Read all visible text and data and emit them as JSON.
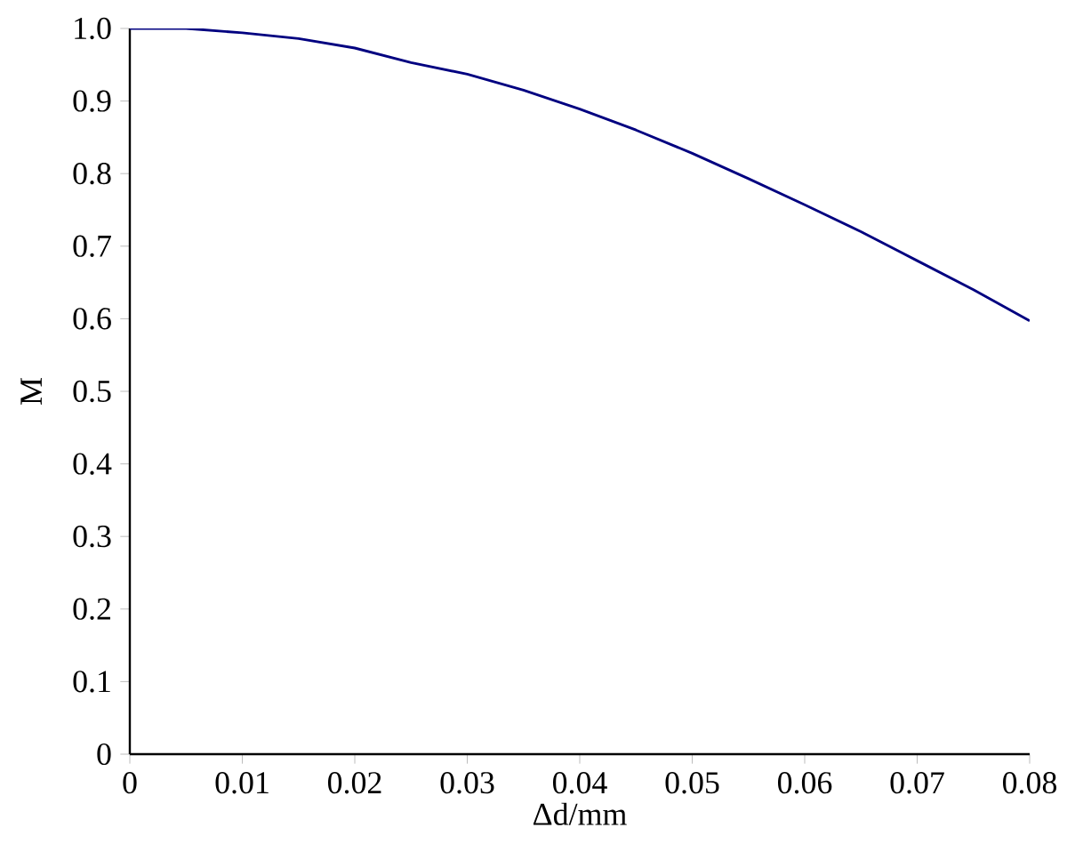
{
  "chart_data": {
    "type": "line",
    "xlabel": "Δd/mm",
    "ylabel": "M",
    "x": [
      0,
      0.005,
      0.01,
      0.015,
      0.02,
      0.025,
      0.03,
      0.035,
      0.04,
      0.045,
      0.05,
      0.055,
      0.06,
      0.065,
      0.07,
      0.075,
      0.08
    ],
    "series": [
      {
        "color": "#000080",
        "values": [
          1.0,
          1.0,
          0.994,
          0.986,
          0.973,
          0.953,
          0.937,
          0.915,
          0.889,
          0.86,
          0.828,
          0.793,
          0.757,
          0.72,
          0.68,
          0.64,
          0.597
        ]
      }
    ],
    "xlim": [
      0,
      0.08
    ],
    "xticks": [
      0,
      0.01,
      0.02,
      0.03,
      0.04,
      0.05,
      0.06,
      0.07,
      0.08
    ],
    "ylim": [
      0,
      1
    ],
    "yticks": [
      0,
      0.1,
      0.2,
      0.3,
      0.4,
      0.5,
      0.6,
      0.7,
      0.8,
      0.9,
      {
        "value": 1,
        "label": "1.0"
      }
    ],
    "marker": "none",
    "line_style": "solid"
  }
}
